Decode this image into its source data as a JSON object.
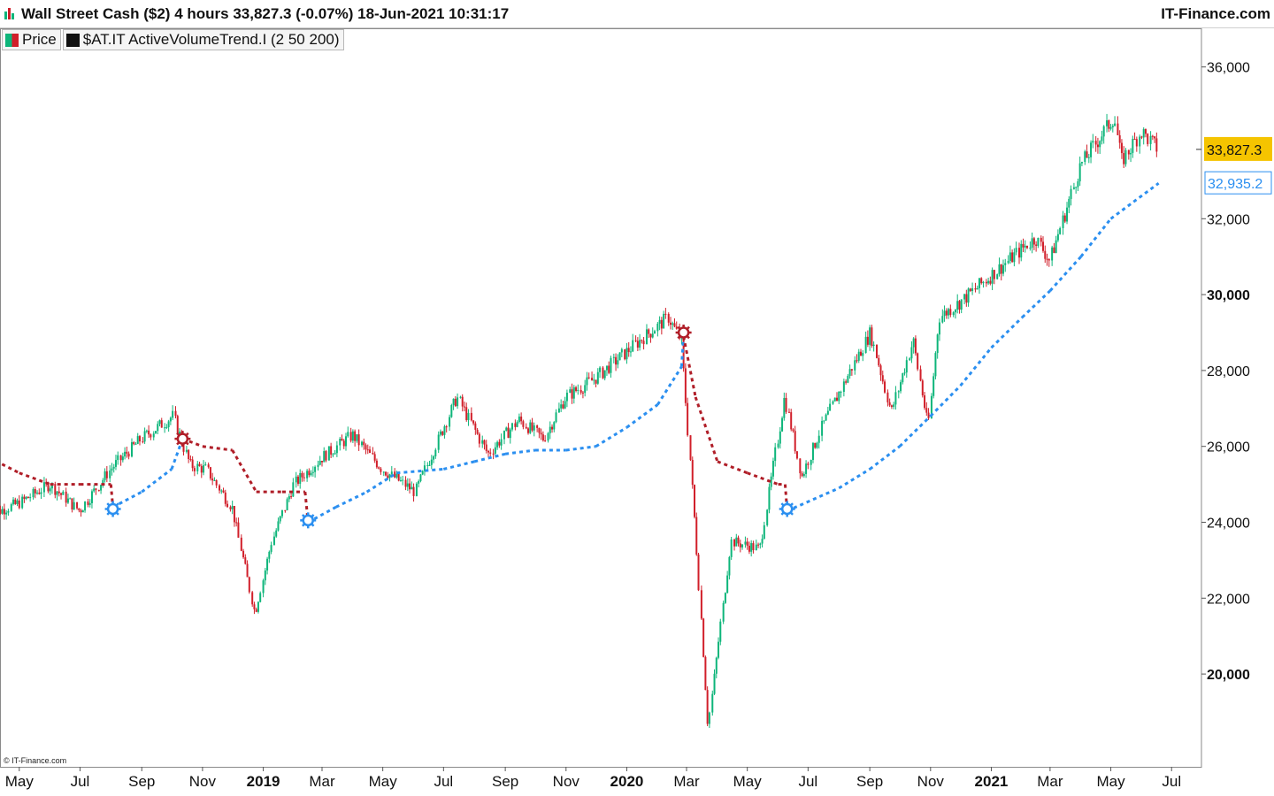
{
  "header": {
    "title": "Wall Street Cash ($2) 4 hours 33,827.3 (-0.07%) 18-Jun-2021 10:31:17",
    "brand": "IT-Finance.com"
  },
  "legend": {
    "price_label": "Price",
    "indicator_label": "$AT.IT ActiveVolumeTrend.I (2 50 200)"
  },
  "copyright": "© IT-Finance.com",
  "colors": {
    "up_candle": "#0db57a",
    "down_candle": "#d11f2a",
    "trend_up_line": "#2b8ff0",
    "trend_down_line": "#b01e28",
    "last_price_badge": "#f5c400"
  },
  "chart_data": {
    "type": "line",
    "title": "Wall Street Cash ($2) 4 hours",
    "ylim": [
      18000,
      37000
    ],
    "y_ticks": [
      "36,000",
      "32,000",
      "30,000",
      "28,000",
      "26,000",
      "24,000",
      "22,000",
      "20,000"
    ],
    "y_tick_values": [
      36000,
      32000,
      30000,
      28000,
      26000,
      24000,
      22000,
      20000
    ],
    "y_bold_ticks": [
      "30,000",
      "20,000"
    ],
    "x_ticks": [
      "May",
      "Jul",
      "Sep",
      "Nov",
      "2019",
      "Mar",
      "May",
      "Jul",
      "Sep",
      "Nov",
      "2020",
      "Mar",
      "May",
      "Jul",
      "Sep",
      "Nov",
      "2021",
      "Mar",
      "May",
      "Jul"
    ],
    "x_tick_dates": [
      "2018-05-01",
      "2018-07-01",
      "2018-09-01",
      "2018-11-01",
      "2019-01-01",
      "2019-03-01",
      "2019-05-01",
      "2019-07-01",
      "2019-09-01",
      "2019-11-01",
      "2020-01-01",
      "2020-03-01",
      "2020-05-01",
      "2020-07-01",
      "2020-09-01",
      "2020-11-01",
      "2021-01-01",
      "2021-03-01",
      "2021-05-01",
      "2021-07-01"
    ],
    "x_bold_ticks": [
      "2019",
      "2020",
      "2021"
    ],
    "last_price": "33,827.3",
    "last_price_value": 33827.3,
    "indicator_last": "32,935.2",
    "indicator_last_value": 32935.2,
    "series": [
      {
        "name": "Price",
        "x": [
          "2018-04-01",
          "2018-05-01",
          "2018-06-01",
          "2018-07-01",
          "2018-08-01",
          "2018-09-01",
          "2018-10-03",
          "2018-10-20",
          "2018-11-05",
          "2018-12-01",
          "2018-12-24",
          "2019-01-10",
          "2019-02-01",
          "2019-03-01",
          "2019-04-01",
          "2019-05-01",
          "2019-06-03",
          "2019-07-15",
          "2019-08-15",
          "2019-09-15",
          "2019-10-10",
          "2019-11-01",
          "2019-12-01",
          "2020-01-15",
          "2020-02-12",
          "2020-02-25",
          "2020-03-10",
          "2020-03-23",
          "2020-04-15",
          "2020-05-14",
          "2020-06-08",
          "2020-06-25",
          "2020-07-15",
          "2020-08-15",
          "2020-09-02",
          "2020-09-23",
          "2020-10-15",
          "2020-10-30",
          "2020-11-10",
          "2020-12-01",
          "2021-01-01",
          "2021-02-01",
          "2021-02-15",
          "2021-03-01",
          "2021-04-01",
          "2021-05-05",
          "2021-05-12",
          "2021-06-01",
          "2021-06-18"
        ],
        "values": [
          24200,
          24500,
          25000,
          24300,
          25400,
          26200,
          26800,
          25500,
          25400,
          24400,
          21600,
          23500,
          25000,
          25700,
          26300,
          25400,
          24800,
          27300,
          25800,
          26700,
          26200,
          27300,
          27800,
          28800,
          29400,
          28800,
          23900,
          18600,
          23500,
          23300,
          27300,
          25200,
          26500,
          28100,
          29000,
          26900,
          28800,
          26500,
          29400,
          29800,
          30500,
          31200,
          31500,
          30900,
          33400,
          34700,
          33500,
          34300,
          33827
        ]
      },
      {
        "name": "$AT.IT ActiveVolumeTrend.I (2 50 200)",
        "x": [
          "2018-04-01",
          "2018-05-01",
          "2018-06-01",
          "2018-07-01",
          "2018-08-01",
          "2018-08-03",
          "2018-09-01",
          "2018-10-01",
          "2018-10-12",
          "2018-11-01",
          "2018-12-01",
          "2018-12-25",
          "2019-01-20",
          "2019-02-12",
          "2019-02-15",
          "2019-03-15",
          "2019-04-15",
          "2019-05-15",
          "2019-07-01",
          "2019-08-01",
          "2019-09-01",
          "2019-10-01",
          "2019-11-01",
          "2019-12-01",
          "2020-01-01",
          "2020-02-01",
          "2020-02-25",
          "2020-02-27",
          "2020-03-10",
          "2020-04-01",
          "2020-05-01",
          "2020-06-01",
          "2020-06-08",
          "2020-06-10",
          "2020-08-01",
          "2020-09-01",
          "2020-10-01",
          "2020-11-01",
          "2020-12-01",
          "2021-01-01",
          "2021-02-01",
          "2021-03-01",
          "2021-04-01",
          "2021-05-01",
          "2021-06-18"
        ],
        "values": [
          25700,
          25300,
          25000,
          25000,
          25000,
          24400,
          24800,
          25400,
          26200,
          26000,
          25900,
          24800,
          24800,
          24800,
          24000,
          24400,
          24800,
          25300,
          25400,
          25600,
          25800,
          25900,
          25900,
          26000,
          26500,
          27100,
          28100,
          28900,
          27300,
          25600,
          25300,
          25000,
          25000,
          24300,
          24900,
          25400,
          26000,
          26800,
          27600,
          28600,
          29400,
          30100,
          31000,
          32000,
          32935
        ]
      }
    ],
    "signals": [
      {
        "date": "2018-08-03",
        "value": 24350,
        "direction": "buy"
      },
      {
        "date": "2018-10-12",
        "value": 26200,
        "direction": "sell"
      },
      {
        "date": "2019-02-15",
        "value": 24050,
        "direction": "buy"
      },
      {
        "date": "2020-02-27",
        "value": 29000,
        "direction": "sell"
      },
      {
        "date": "2020-06-10",
        "value": 24350,
        "direction": "buy"
      }
    ]
  }
}
